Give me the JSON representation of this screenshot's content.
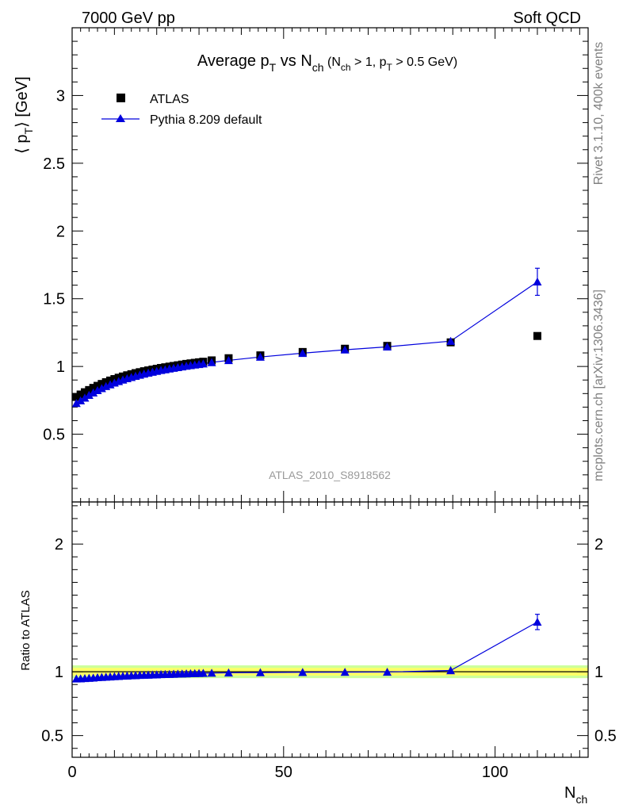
{
  "header": {
    "left": "7000 GeV pp",
    "right": "Soft QCD"
  },
  "side": {
    "rivet": "Rivet 3.1.10,  400k events",
    "mcplots": "mcplots.cern.ch [arXiv:1306.3436]"
  },
  "chart_data": [
    {
      "type": "scatter",
      "title_parts": {
        "lead": "Average p",
        "lead_sub": "T",
        "mid": " vs N",
        "mid_sub": "ch",
        "cut1": " (N",
        "cut1_sub": "ch",
        "cut2": " > 1, p",
        "cut2_sub": "T",
        "cut3": " > 0.5 GeV)"
      },
      "ylabel_parts": {
        "open": "⟨ p",
        "sub": "T",
        "close": "⟩  [GeV]"
      },
      "xlabel_parts": {
        "main": "N",
        "sub": "ch"
      },
      "xlim": [
        0,
        122
      ],
      "ylim": [
        0,
        3.5
      ],
      "x_ticks": [
        "0",
        "50",
        "100"
      ],
      "y_ticks": [
        {
          "v": 0.5,
          "label": "0.5"
        },
        {
          "v": 1,
          "label": "1"
        },
        {
          "v": 1.5,
          "label": "1.5"
        },
        {
          "v": 2,
          "label": "2"
        },
        {
          "v": 2.5,
          "label": "2.5"
        },
        {
          "v": 3,
          "label": "3"
        }
      ],
      "legend_position": "top-left",
      "watermark": "ATLAS_2010_S8918562",
      "series": [
        {
          "name": "ATLAS",
          "marker": "square",
          "color": "#000000",
          "x": [
            1,
            2,
            3,
            4,
            5,
            6,
            7,
            8,
            9,
            10,
            11,
            12,
            13,
            14,
            15,
            16,
            17,
            18,
            19,
            20,
            21,
            22,
            23,
            24,
            25,
            26,
            27,
            28,
            29,
            30,
            31,
            33,
            37,
            44.5,
            54.5,
            64.5,
            74.5,
            89.5,
            110
          ],
          "y": [
            0.775,
            0.793,
            0.81,
            0.826,
            0.842,
            0.857,
            0.871,
            0.884,
            0.896,
            0.907,
            0.917,
            0.926,
            0.935,
            0.943,
            0.951,
            0.958,
            0.965,
            0.971,
            0.977,
            0.983,
            0.989,
            0.994,
            0.999,
            1.004,
            1.009,
            1.014,
            1.019,
            1.023,
            1.027,
            1.031,
            1.035,
            1.045,
            1.061,
            1.082,
            1.107,
            1.131,
            1.152,
            1.178,
            1.225
          ]
        },
        {
          "name": "Pythia 8.209 default",
          "marker": "triangle",
          "color": "#0000dd",
          "x": [
            1,
            2,
            3,
            4,
            5,
            6,
            7,
            8,
            9,
            10,
            11,
            12,
            13,
            14,
            15,
            16,
            17,
            18,
            19,
            20,
            21,
            22,
            23,
            24,
            25,
            26,
            27,
            28,
            29,
            30,
            31,
            33,
            37,
            44.5,
            54.5,
            64.5,
            74.5,
            89.5,
            110
          ],
          "y": [
            0.728,
            0.748,
            0.768,
            0.788,
            0.806,
            0.823,
            0.838,
            0.853,
            0.866,
            0.879,
            0.89,
            0.901,
            0.911,
            0.92,
            0.929,
            0.937,
            0.945,
            0.952,
            0.959,
            0.965,
            0.972,
            0.977,
            0.983,
            0.988,
            0.993,
            0.998,
            1.003,
            1.008,
            1.012,
            1.016,
            1.02,
            1.03,
            1.045,
            1.07,
            1.098,
            1.123,
            1.145,
            1.187,
            1.625
          ],
          "yerr_last": 0.1
        }
      ]
    },
    {
      "type": "scatter",
      "ylabel": "Ratio to ATLAS",
      "xlim": [
        0,
        122
      ],
      "ylim": [
        0.33,
        2.33
      ],
      "y_ticks": [
        {
          "v": 0.5,
          "label": "0.5"
        },
        {
          "v": 1,
          "label": "1"
        },
        {
          "v": 2,
          "label": "2"
        }
      ],
      "band_inner": 0.03,
      "band_outer": 0.05,
      "band_colors": {
        "inner": "#ffff66",
        "outer": "#ccff99"
      },
      "series": [
        {
          "name": "Pythia 8.209 default",
          "color": "#0000dd",
          "x": [
            1,
            2,
            3,
            4,
            5,
            6,
            7,
            8,
            9,
            10,
            11,
            12,
            13,
            14,
            15,
            16,
            17,
            18,
            19,
            20,
            21,
            22,
            23,
            24,
            25,
            26,
            27,
            28,
            29,
            30,
            31,
            33,
            37,
            44.5,
            54.5,
            64.5,
            74.5,
            89.5,
            110
          ],
          "y": [
            0.945,
            0.946,
            0.948,
            0.95,
            0.952,
            0.955,
            0.957,
            0.959,
            0.961,
            0.963,
            0.965,
            0.967,
            0.968,
            0.97,
            0.971,
            0.973,
            0.974,
            0.975,
            0.976,
            0.977,
            0.979,
            0.98,
            0.981,
            0.982,
            0.983,
            0.984,
            0.985,
            0.986,
            0.987,
            0.988,
            0.989,
            0.99,
            0.992,
            0.994,
            0.996,
            0.997,
            0.998,
            1.01,
            1.39
          ],
          "yerr_last": 0.06
        }
      ]
    }
  ]
}
